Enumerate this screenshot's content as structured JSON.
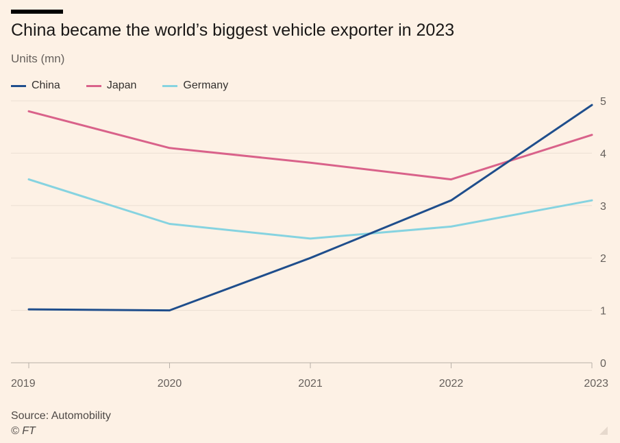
{
  "header": {
    "title": "China became the world’s biggest vehicle exporter in 2023",
    "subtitle": "Units (mn)"
  },
  "footer": {
    "source": "Source: Automobility",
    "copyright": "© FT"
  },
  "colors": {
    "background": "#fdf1e5",
    "gridline": "#ece0d4",
    "axis": "#b8b0a8",
    "tick_text": "#66605c"
  },
  "chart_data": {
    "type": "line",
    "x": [
      "2019",
      "2020",
      "2021",
      "2022",
      "2023"
    ],
    "ylabel": "Units (mn)",
    "ylim": [
      0,
      5
    ],
    "yticks": [
      "0",
      "1",
      "2",
      "3",
      "4",
      "5"
    ],
    "grid": true,
    "legend_position": "top-left",
    "series": [
      {
        "name": "China",
        "color": "#1f4e8c",
        "values": [
          1.02,
          1.0,
          2.0,
          3.1,
          4.92
        ]
      },
      {
        "name": "Japan",
        "color": "#d9628a",
        "values": [
          4.8,
          4.1,
          3.82,
          3.5,
          4.35
        ]
      },
      {
        "name": "Germany",
        "color": "#86d3e0",
        "values": [
          3.5,
          2.65,
          2.37,
          2.6,
          3.1
        ]
      }
    ]
  }
}
